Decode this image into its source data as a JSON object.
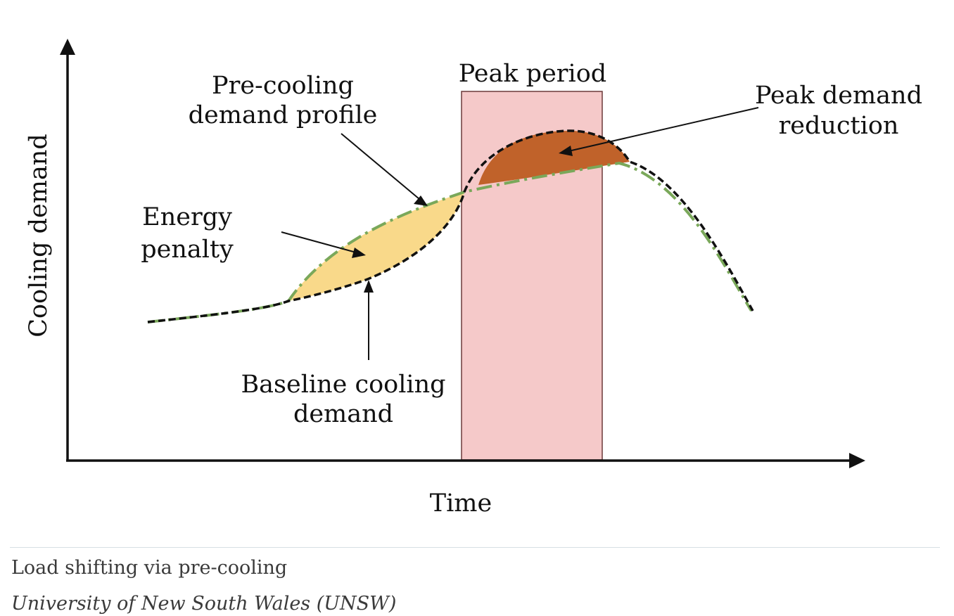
{
  "figure": {
    "title": "Load shifting via pre-cooling",
    "y_axis_label": "Cooling demand",
    "x_axis_label": "Time",
    "peak_period_label": "Peak period",
    "precooling_label": [
      "Pre-cooling",
      "demand profile"
    ],
    "energy_penalty_label": [
      "Energy",
      "penalty"
    ],
    "baseline_label": [
      "Baseline cooling",
      "demand"
    ],
    "peak_reduction_label": [
      "Peak demand",
      "reduction"
    ],
    "colors": {
      "peak_period_fill": "#f5c9c9",
      "energy_penalty_fill": "#f9d98a",
      "peak_reduction_fill": "#c0622a",
      "precooling_line": "#7aa85a",
      "baseline_line": "#111111"
    }
  },
  "caption": {
    "text": "Load shifting via pre-cooling",
    "credit": "University of New South Wales (UNSW)"
  }
}
